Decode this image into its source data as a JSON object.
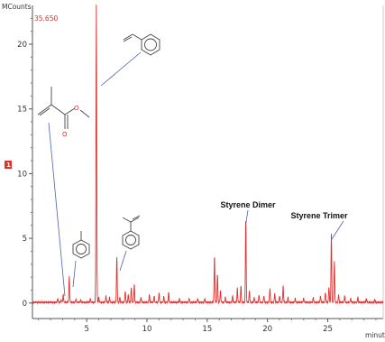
{
  "chart_data": {
    "type": "line",
    "title": "",
    "ylabel": "MCounts",
    "xlabel": "minutes",
    "max_label": "35.650",
    "side_marker": "1",
    "xlim": [
      0.5,
      29.6
    ],
    "ylim": [
      -1.2,
      23
    ],
    "x_ticks": [
      5,
      10,
      15,
      20,
      25
    ],
    "y_ticks": [
      0,
      5,
      10,
      15,
      20
    ],
    "grid": false,
    "line_color": "#e0312f",
    "baseline": 0.05,
    "series": [
      {
        "peaks": [
          [
            2.6,
            0.3
          ],
          [
            2.9,
            0.2
          ],
          [
            3.05,
            0.6
          ],
          [
            3.55,
            2.0
          ],
          [
            4.1,
            0.25
          ],
          [
            4.5,
            0.2
          ],
          [
            5.3,
            0.3
          ],
          [
            5.8,
            23
          ],
          [
            6.0,
            0.4
          ],
          [
            6.6,
            0.5
          ],
          [
            6.9,
            0.4
          ],
          [
            7.5,
            3.6
          ],
          [
            7.75,
            0.4
          ],
          [
            8.2,
            0.9
          ],
          [
            8.45,
            0.6
          ],
          [
            8.7,
            1.2
          ],
          [
            8.95,
            1.4
          ],
          [
            9.5,
            0.4
          ],
          [
            10.2,
            0.6
          ],
          [
            10.6,
            0.5
          ],
          [
            11.0,
            0.7
          ],
          [
            11.4,
            0.45
          ],
          [
            11.8,
            0.8
          ],
          [
            12.7,
            0.3
          ],
          [
            13.5,
            0.35
          ],
          [
            14.2,
            0.3
          ],
          [
            14.8,
            0.3
          ],
          [
            15.6,
            3.6
          ],
          [
            15.85,
            2.2
          ],
          [
            16.1,
            0.9
          ],
          [
            16.5,
            0.4
          ],
          [
            17.1,
            0.5
          ],
          [
            17.5,
            1.1
          ],
          [
            17.8,
            1.3
          ],
          [
            18.2,
            6.6
          ],
          [
            18.5,
            0.9
          ],
          [
            18.9,
            0.4
          ],
          [
            19.3,
            0.6
          ],
          [
            19.7,
            0.5
          ],
          [
            20.2,
            1.1
          ],
          [
            20.6,
            0.7
          ],
          [
            21.0,
            0.5
          ],
          [
            21.3,
            1.3
          ],
          [
            21.7,
            0.4
          ],
          [
            22.3,
            0.3
          ],
          [
            23.0,
            0.3
          ],
          [
            23.8,
            0.4
          ],
          [
            24.4,
            0.5
          ],
          [
            24.8,
            0.8
          ],
          [
            25.1,
            1.2
          ],
          [
            25.3,
            5.4
          ],
          [
            25.55,
            3.2
          ],
          [
            25.9,
            0.6
          ],
          [
            26.4,
            0.5
          ],
          [
            26.9,
            0.3
          ],
          [
            27.5,
            0.4
          ],
          [
            28.2,
            0.3
          ],
          [
            28.9,
            0.25
          ]
        ]
      }
    ],
    "annotations": [
      {
        "text": "Styrene Dimer",
        "x": 18.2,
        "y": 6.6
      },
      {
        "text": "Styrene Trimer",
        "x": 25.3,
        "y": 5.4
      }
    ],
    "structure_labels": {
      "oxygen": "O"
    }
  }
}
